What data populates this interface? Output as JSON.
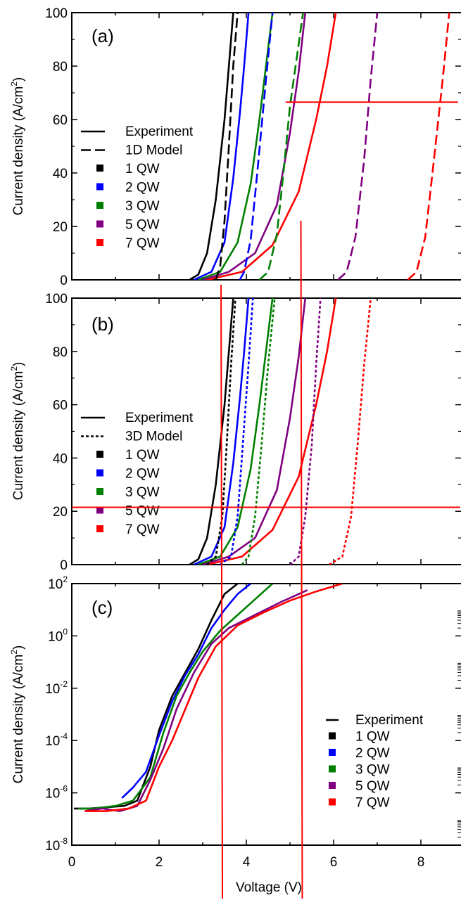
{
  "chart_data": [
    {
      "panel": "(a)",
      "type": "line",
      "ylabel": "Current density (A/cm2)",
      "ylabel_parts": [
        "Current density (A/cm",
        "2",
        ")"
      ],
      "xlim": [
        0,
        8.9
      ],
      "ylim": [
        0,
        100
      ],
      "yscale": "linear",
      "yticks": [
        0,
        20,
        40,
        60,
        80,
        100
      ],
      "ytick_labels": [
        "0",
        "20",
        "40",
        "60",
        "80",
        "100"
      ],
      "legend": {
        "placement": "left-middle",
        "style_entries": [
          {
            "label": "Experiment",
            "dash": "solid"
          },
          {
            "label": "1D Model",
            "dash": "dashed"
          }
        ],
        "color_entries": [
          {
            "label": "1 QW",
            "color": "#000000"
          },
          {
            "label": "2 QW",
            "color": "#0000ff"
          },
          {
            "label": "3 QW",
            "color": "#008000"
          },
          {
            "label": "5 QW",
            "color": "#800080"
          },
          {
            "label": "7 QW",
            "color": "#ff0000"
          }
        ]
      },
      "series": [
        {
          "color": "#000000",
          "dash": "solid",
          "x": [
            2.7,
            2.9,
            3.1,
            3.3,
            3.5,
            3.6,
            3.7
          ],
          "y": [
            0,
            2,
            10,
            30,
            60,
            80,
            100
          ]
        },
        {
          "color": "#0000ff",
          "dash": "solid",
          "x": [
            2.8,
            3.2,
            3.5,
            3.7,
            3.85,
            3.95,
            4.05
          ],
          "y": [
            0,
            3,
            14,
            38,
            62,
            80,
            100
          ]
        },
        {
          "color": "#008000",
          "dash": "solid",
          "x": [
            2.9,
            3.4,
            3.8,
            4.1,
            4.3,
            4.45,
            4.6
          ],
          "y": [
            0,
            3,
            14,
            36,
            60,
            80,
            100
          ]
        },
        {
          "color": "#800080",
          "dash": "solid",
          "x": [
            3.0,
            3.6,
            4.2,
            4.7,
            5.0,
            5.2,
            5.35
          ],
          "y": [
            0,
            3,
            10,
            28,
            55,
            78,
            100
          ]
        },
        {
          "color": "#ff0000",
          "dash": "solid",
          "x": [
            3.1,
            3.9,
            4.6,
            5.2,
            5.6,
            5.85,
            6.05
          ],
          "y": [
            0,
            3,
            13,
            33,
            60,
            80,
            100
          ]
        },
        {
          "color": "#000000",
          "dash": "dashed",
          "x": [
            3.3,
            3.4,
            3.5,
            3.6,
            3.7,
            3.8
          ],
          "y": [
            0,
            5,
            22,
            50,
            80,
            100
          ]
        },
        {
          "color": "#0000ff",
          "dash": "dashed",
          "x": [
            3.85,
            3.95,
            4.1,
            4.25,
            4.45,
            4.6
          ],
          "y": [
            0,
            3,
            15,
            40,
            75,
            100
          ]
        },
        {
          "color": "#008000",
          "dash": "dashed",
          "x": [
            4.3,
            4.5,
            4.7,
            4.85,
            5.0,
            5.3
          ],
          "y": [
            0,
            3,
            17,
            40,
            65,
            100
          ]
        },
        {
          "color": "#800080",
          "dash": "dashed",
          "x": [
            6.1,
            6.3,
            6.5,
            6.7,
            6.85,
            7.0
          ],
          "y": [
            0,
            3,
            16,
            45,
            75,
            100
          ]
        },
        {
          "color": "#ff0000",
          "dash": "dashed",
          "x": [
            7.7,
            7.9,
            8.1,
            8.3,
            8.5,
            8.65
          ],
          "y": [
            0,
            3,
            16,
            45,
            75,
            100
          ]
        }
      ]
    },
    {
      "panel": "(b)",
      "type": "line",
      "ylabel": "Current density (A/cm2)",
      "ylabel_parts": [
        "Current density (A/cm",
        "2",
        ")"
      ],
      "xlim": [
        0,
        8.9
      ],
      "ylim": [
        0,
        100
      ],
      "yscale": "linear",
      "yticks": [
        0,
        20,
        40,
        60,
        80,
        100
      ],
      "ytick_labels": [
        "0",
        "20",
        "40",
        "60",
        "80",
        "100"
      ],
      "legend": {
        "placement": "left-middle",
        "style_entries": [
          {
            "label": "Experiment",
            "dash": "solid"
          },
          {
            "label": "3D Model",
            "dash": "dotted"
          }
        ],
        "color_entries": [
          {
            "label": "1 QW",
            "color": "#000000"
          },
          {
            "label": "2 QW",
            "color": "#0000ff"
          },
          {
            "label": "3 QW",
            "color": "#008000"
          },
          {
            "label": "5 QW",
            "color": "#800080"
          },
          {
            "label": "7 QW",
            "color": "#ff0000"
          }
        ]
      },
      "series": [
        {
          "color": "#000000",
          "dash": "solid",
          "x": [
            2.7,
            2.9,
            3.1,
            3.3,
            3.5,
            3.6,
            3.7
          ],
          "y": [
            0,
            2,
            10,
            30,
            60,
            80,
            100
          ]
        },
        {
          "color": "#0000ff",
          "dash": "solid",
          "x": [
            2.8,
            3.2,
            3.5,
            3.7,
            3.85,
            3.95,
            4.05
          ],
          "y": [
            0,
            3,
            14,
            38,
            62,
            80,
            100
          ]
        },
        {
          "color": "#008000",
          "dash": "solid",
          "x": [
            2.9,
            3.4,
            3.8,
            4.1,
            4.3,
            4.45,
            4.6
          ],
          "y": [
            0,
            3,
            14,
            36,
            60,
            80,
            100
          ]
        },
        {
          "color": "#800080",
          "dash": "solid",
          "x": [
            3.0,
            3.6,
            4.2,
            4.7,
            5.0,
            5.2,
            5.35
          ],
          "y": [
            0,
            3,
            10,
            28,
            55,
            78,
            100
          ]
        },
        {
          "color": "#ff0000",
          "dash": "solid",
          "x": [
            3.1,
            3.9,
            4.6,
            5.2,
            5.6,
            5.85,
            6.05
          ],
          "y": [
            0,
            3,
            13,
            33,
            60,
            80,
            100
          ]
        },
        {
          "color": "#000000",
          "dash": "dotted",
          "x": [
            3.1,
            3.3,
            3.45,
            3.55,
            3.65,
            3.75
          ],
          "y": [
            0,
            3,
            18,
            45,
            75,
            100
          ]
        },
        {
          "color": "#0000ff",
          "dash": "dotted",
          "x": [
            3.4,
            3.65,
            3.8,
            3.92,
            4.05,
            4.15
          ],
          "y": [
            0,
            3,
            18,
            45,
            75,
            100
          ]
        },
        {
          "color": "#008000",
          "dash": "dotted",
          "x": [
            3.9,
            4.05,
            4.2,
            4.35,
            4.5,
            4.65
          ],
          "y": [
            0,
            3,
            18,
            45,
            75,
            100
          ]
        },
        {
          "color": "#800080",
          "dash": "dotted",
          "x": [
            5.0,
            5.2,
            5.35,
            5.5,
            5.6,
            5.7
          ],
          "y": [
            0,
            3,
            18,
            45,
            75,
            100
          ]
        },
        {
          "color": "#ff0000",
          "dash": "dotted",
          "x": [
            5.9,
            6.2,
            6.4,
            6.55,
            6.7,
            6.85
          ],
          "y": [
            0,
            3,
            18,
            45,
            75,
            100
          ]
        }
      ]
    },
    {
      "panel": "(c)",
      "type": "line",
      "ylabel": "Current density (A/cm2)",
      "ylabel_parts": [
        "Current density (A/cm",
        "2",
        ")"
      ],
      "xlabel": "Voltage (V)",
      "xlim": [
        0,
        8.9
      ],
      "xticks": [
        0,
        2,
        4,
        6,
        8
      ],
      "xtick_labels": [
        "0",
        "2",
        "4",
        "6",
        "8"
      ],
      "ylim": [
        1e-08,
        100
      ],
      "yscale": "log",
      "yticks": [
        -8,
        -6,
        -4,
        -2,
        0,
        2
      ],
      "ytick_labels": [
        {
          "base": "10",
          "exp": "-8"
        },
        {
          "base": "10",
          "exp": "-6"
        },
        {
          "base": "10",
          "exp": "-4"
        },
        {
          "base": "10",
          "exp": "-2"
        },
        {
          "base": "10",
          "exp": "0"
        },
        {
          "base": "10",
          "exp": "2"
        }
      ],
      "legend": {
        "placement": "bottom-right",
        "style_entries": [
          {
            "label": "Experiment",
            "dash": "solid"
          }
        ],
        "color_entries": [
          {
            "label": "1 QW",
            "color": "#000000"
          },
          {
            "label": "2 QW",
            "color": "#0000ff"
          },
          {
            "label": "3 QW",
            "color": "#008000"
          },
          {
            "label": "5 QW",
            "color": "#800080"
          },
          {
            "label": "7 QW",
            "color": "#ff0000"
          }
        ]
      },
      "series": [
        {
          "color": "#000000",
          "dash": "solid",
          "x": [
            0.05,
            0.4,
            0.8,
            1.2,
            1.5,
            1.8,
            2.0,
            2.3,
            2.6,
            2.9,
            3.2,
            3.5,
            3.8
          ],
          "log10_y": [
            -6.6,
            -6.6,
            -6.55,
            -6.5,
            -6.3,
            -5.0,
            -3.6,
            -2.3,
            -1.4,
            -0.5,
            0.6,
            1.6,
            2.0
          ]
        },
        {
          "color": "#0000ff",
          "dash": "solid",
          "x": [
            1.15,
            1.4,
            1.7,
            2.0,
            2.3,
            2.6,
            2.9,
            3.2,
            3.5,
            3.8,
            4.1
          ],
          "log10_y": [
            -6.2,
            -5.8,
            -5.2,
            -3.8,
            -2.5,
            -1.5,
            -0.7,
            0.3,
            1.0,
            1.6,
            2.0
          ]
        },
        {
          "color": "#008000",
          "dash": "solid",
          "x": [
            0.15,
            0.5,
            1.0,
            1.4,
            1.8,
            2.1,
            2.4,
            2.7,
            3.0,
            3.4,
            3.8,
            4.2,
            4.6
          ],
          "log10_y": [
            -6.6,
            -6.6,
            -6.5,
            -6.3,
            -5.4,
            -3.7,
            -2.3,
            -1.4,
            -0.6,
            0.2,
            0.8,
            1.4,
            2.0
          ]
        },
        {
          "color": "#800080",
          "dash": "solid",
          "x": [
            0.3,
            0.7,
            1.1,
            1.5,
            1.8,
            2.1,
            2.4,
            2.8,
            3.2,
            3.6,
            4.2,
            4.8,
            5.4
          ],
          "log10_y": [
            -6.7,
            -6.6,
            -6.7,
            -6.5,
            -5.5,
            -4.3,
            -2.8,
            -1.4,
            -0.3,
            0.3,
            0.8,
            1.3,
            1.75
          ]
        },
        {
          "color": "#ff0000",
          "dash": "solid",
          "x": [
            0.3,
            0.8,
            1.3,
            1.7,
            2.0,
            2.3,
            2.6,
            2.9,
            3.3,
            3.8,
            4.4,
            5.0,
            5.6,
            6.2
          ],
          "log10_y": [
            -6.7,
            -6.7,
            -6.6,
            -6.3,
            -5.0,
            -4.0,
            -2.8,
            -1.6,
            -0.4,
            0.4,
            0.9,
            1.35,
            1.7,
            2.0
          ]
        }
      ]
    }
  ],
  "overlay_lines": {
    "color": "#ff0000",
    "horizontal": [
      {
        "panel": "(a)",
        "x_range": [
          4.9,
          8.85
        ],
        "y": 66.5
      },
      {
        "panel": "(b)",
        "x_range": [
          0.0,
          8.9
        ],
        "y": 21.5
      }
    ],
    "vertical": [
      {
        "x": 3.42
      },
      {
        "x": 5.25
      }
    ]
  }
}
